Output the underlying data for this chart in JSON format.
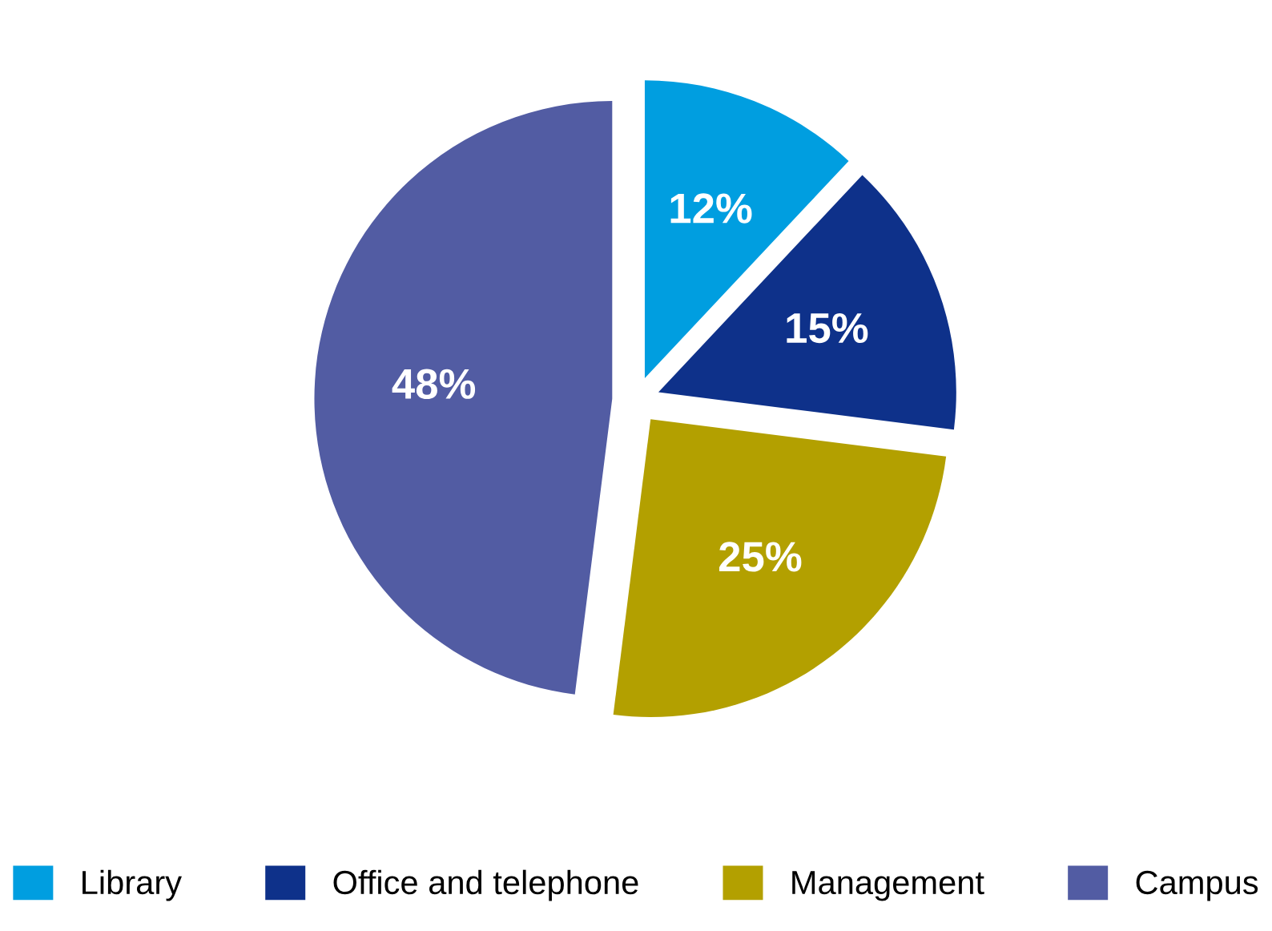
{
  "chart_data": {
    "type": "pie",
    "categories": [
      "Library",
      "Office and telephone",
      "Management",
      "Campus"
    ],
    "values": [
      12,
      15,
      25,
      48
    ],
    "colors": [
      "#009ee0",
      "#0e318a",
      "#b3a000",
      "#525ca3"
    ],
    "value_labels": [
      "12%",
      "15%",
      "25%",
      "48%"
    ],
    "legend": "bottom"
  }
}
